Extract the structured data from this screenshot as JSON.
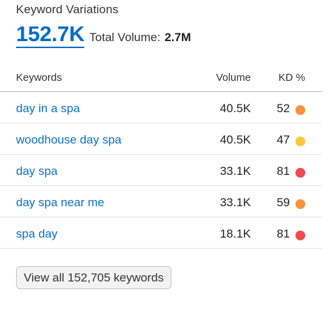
{
  "widget": {
    "title": "Keyword Variations",
    "count": "152.7K",
    "total_label": "Total Volume:",
    "total_value": "2.7M"
  },
  "table": {
    "headers": {
      "keywords": "Keywords",
      "volume": "Volume",
      "kd": "KD %"
    },
    "rows": [
      {
        "keyword": "day in a spa",
        "volume": "40.5K",
        "kd": "52",
        "kd_color": "#f5923e"
      },
      {
        "keyword": "woodhouse day spa",
        "volume": "40.5K",
        "kd": "47",
        "kd_color": "#fcc83c"
      },
      {
        "keyword": "day spa",
        "volume": "33.1K",
        "kd": "81",
        "kd_color": "#ee4a4f"
      },
      {
        "keyword": "day spa near me",
        "volume": "33.1K",
        "kd": "59",
        "kd_color": "#f5923e"
      },
      {
        "keyword": "spa day",
        "volume": "18.1K",
        "kd": "81",
        "kd_color": "#ee4a4f"
      }
    ]
  },
  "footer": {
    "view_all_label": "View all 152,705 keywords"
  },
  "colors": {
    "link": "#0a6fc2",
    "accent": "#006dca"
  }
}
